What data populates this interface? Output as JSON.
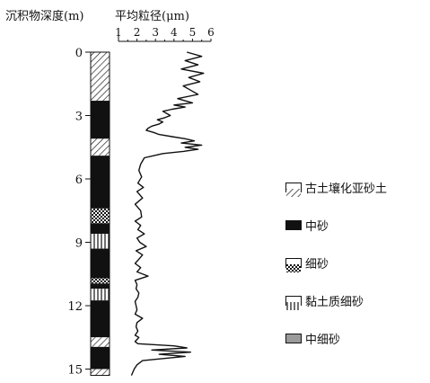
{
  "colors": {
    "ink": "#111111",
    "paper": "#ffffff",
    "medium_gray": "#9a9a9a"
  },
  "chart_data": {
    "type": "line",
    "title": "",
    "depth_axis": {
      "label": "沉积物深度(m)",
      "range": [
        0,
        15.3
      ],
      "ticks": [
        "0",
        "3",
        "6",
        "9",
        "12",
        "15"
      ],
      "inverted": true
    },
    "grain_axis": {
      "label": "平均粒径(μm)",
      "range": [
        1,
        6
      ],
      "ticks": [
        "1",
        "2",
        "3",
        "4",
        "5",
        "6"
      ]
    },
    "grid": false,
    "legend_position": "right",
    "series": [
      {
        "x": [
          4.7,
          5.5,
          4.6,
          5.3,
          4.4,
          5.6,
          4.8,
          5.4,
          4.5,
          4.9,
          5.3,
          4.2,
          5.0,
          4.0,
          4.6,
          3.9,
          3.4,
          3.6,
          3.8,
          3.5,
          3.1,
          3.4,
          3.2,
          2.8,
          2.6,
          2.5,
          2.9,
          3.2,
          3.9,
          4.6,
          5.1,
          4.4,
          5.5,
          4.6,
          5.3,
          4.5,
          3.4,
          2.9,
          2.4,
          2.2,
          2.1,
          2.25,
          2.05,
          2.35,
          2.0,
          2.3,
          1.9,
          2.2,
          2.25,
          1.9,
          2.2,
          2.05,
          2.4,
          2.0,
          2.15,
          2.5,
          1.95,
          2.3,
          2.1,
          1.9,
          2.2,
          2.0,
          2.6,
          1.9,
          2.0,
          1.95,
          2.1,
          2.05,
          1.9,
          1.95,
          2.0,
          1.9,
          2.3,
          2.0,
          1.95,
          2.05,
          1.9,
          2.1,
          2.0,
          1.9,
          2.05,
          4.0,
          4.7,
          2.8,
          4.9,
          3.2,
          4.6,
          2.3,
          2.0,
          1.85,
          1.7
        ],
        "y": [
          0,
          0.2,
          0.4,
          0.6,
          0.8,
          1.0,
          1.2,
          1.4,
          1.6,
          1.8,
          2.0,
          2.2,
          2.4,
          2.5,
          2.6,
          2.7,
          2.8,
          2.9,
          3.0,
          3.1,
          3.2,
          3.3,
          3.4,
          3.5,
          3.6,
          3.7,
          3.8,
          3.9,
          4.0,
          4.1,
          4.2,
          4.3,
          4.4,
          4.5,
          4.6,
          4.7,
          4.8,
          4.9,
          5.0,
          5.3,
          5.6,
          5.9,
          6.2,
          6.4,
          6.6,
          6.9,
          7.2,
          7.5,
          7.8,
          8.0,
          8.2,
          8.4,
          8.6,
          8.8,
          9.0,
          9.2,
          9.4,
          9.6,
          9.8,
          10.0,
          10.2,
          10.4,
          10.6,
          10.8,
          11.0,
          11.2,
          11.4,
          11.6,
          11.8,
          12.0,
          12.2,
          12.4,
          12.6,
          12.8,
          13.0,
          13.2,
          13.4,
          13.5,
          13.6,
          13.7,
          13.8,
          13.9,
          14.0,
          14.1,
          14.2,
          14.3,
          14.4,
          14.6,
          14.8,
          15.0,
          15.3
        ]
      }
    ],
    "lithology_column": [
      {
        "top": 0.0,
        "bottom": 2.3,
        "type": "hatched"
      },
      {
        "top": 2.3,
        "bottom": 4.1,
        "type": "black"
      },
      {
        "top": 4.1,
        "bottom": 4.9,
        "type": "hatched"
      },
      {
        "top": 4.9,
        "bottom": 7.4,
        "type": "black"
      },
      {
        "top": 7.4,
        "bottom": 8.1,
        "type": "checker"
      },
      {
        "top": 8.1,
        "bottom": 8.6,
        "type": "black"
      },
      {
        "top": 8.6,
        "bottom": 9.3,
        "type": "vlines"
      },
      {
        "top": 9.3,
        "bottom": 10.7,
        "type": "black"
      },
      {
        "top": 10.7,
        "bottom": 10.95,
        "type": "checker"
      },
      {
        "top": 10.95,
        "bottom": 11.2,
        "type": "black"
      },
      {
        "top": 11.2,
        "bottom": 11.75,
        "type": "vlines"
      },
      {
        "top": 11.75,
        "bottom": 13.5,
        "type": "black"
      },
      {
        "top": 13.5,
        "bottom": 13.95,
        "type": "hatched"
      },
      {
        "top": 13.95,
        "bottom": 15.0,
        "type": "black"
      },
      {
        "top": 15.0,
        "bottom": 15.3,
        "type": "hatched"
      }
    ]
  },
  "legend": {
    "items": [
      {
        "label": "古土壤化亚砂土",
        "pattern": "hatched"
      },
      {
        "label": "中砂",
        "pattern": "black"
      },
      {
        "label": "细砂",
        "pattern": "checker"
      },
      {
        "label": "黏土质细砂",
        "pattern": "vlines"
      },
      {
        "label": "中细砂",
        "pattern": "gray"
      }
    ]
  }
}
